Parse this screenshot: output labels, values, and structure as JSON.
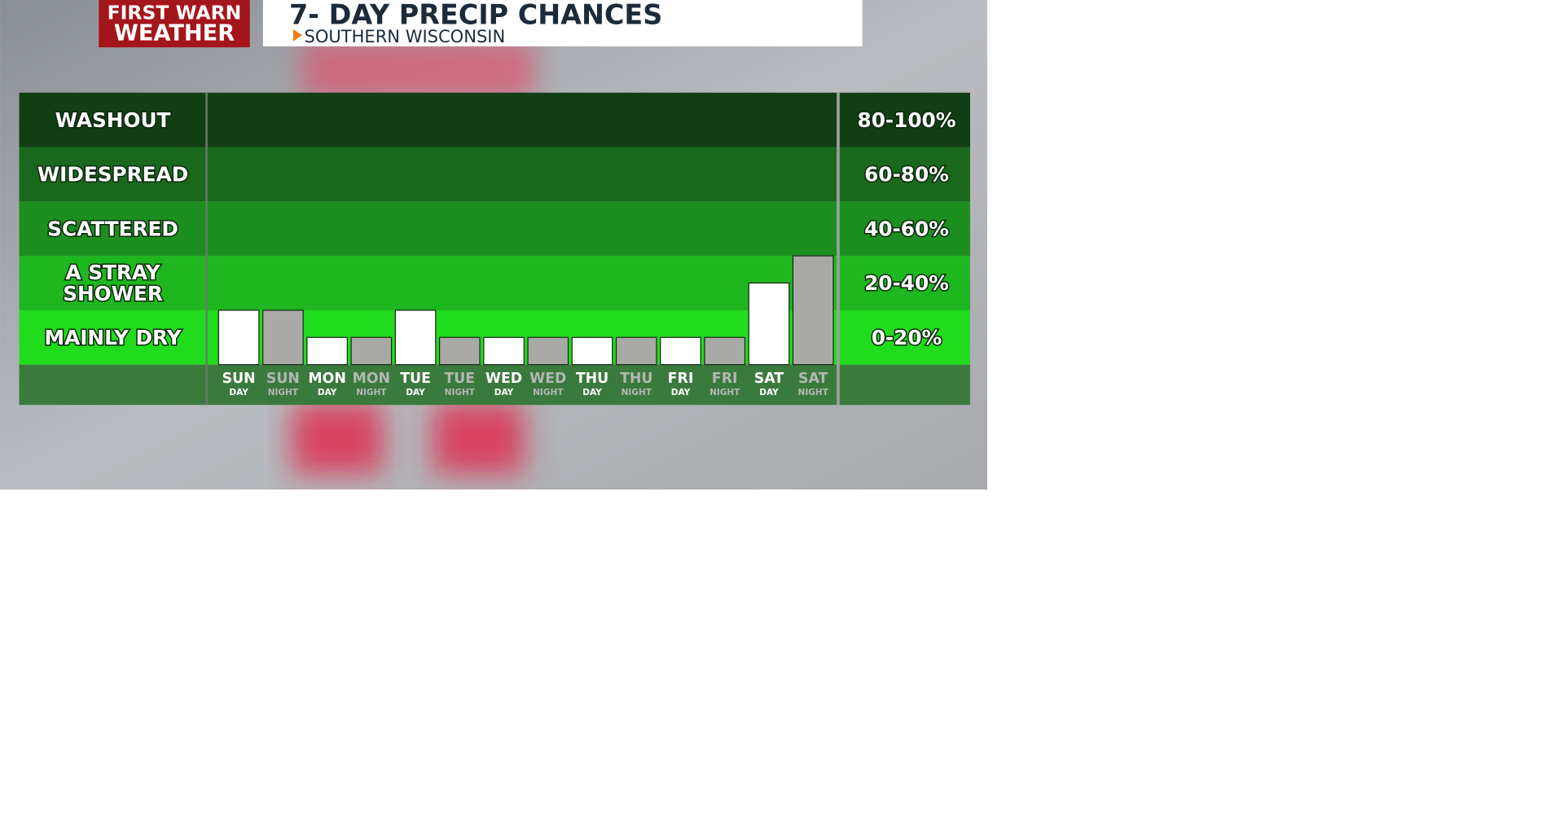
{
  "header": {
    "logo": [
      "FIRST WARN",
      "WEATHER"
    ],
    "title": "7- DAY PRECIP CHANCES",
    "subtitle": "SOUTHERN WISCONSIN"
  },
  "chart_data": {
    "type": "bar",
    "categories": [
      "SUN",
      "SUN",
      "MON",
      "MON",
      "TUE",
      "TUE",
      "WED",
      "WED",
      "THU",
      "THU",
      "FRI",
      "FRI",
      "SAT",
      "SAT"
    ],
    "periods": [
      "DAY",
      "NIGHT",
      "DAY",
      "NIGHT",
      "DAY",
      "NIGHT",
      "DAY",
      "NIGHT",
      "DAY",
      "NIGHT",
      "DAY",
      "NIGHT",
      "DAY",
      "NIGHT"
    ],
    "values": [
      20,
      20,
      10,
      10,
      20,
      10,
      10,
      10,
      10,
      10,
      10,
      10,
      30,
      40
    ],
    "colors": [
      "#ffffff",
      "#a9aaa7",
      "#ffffff",
      "#a9aaa7",
      "#ffffff",
      "#a9aaa7",
      "#ffffff",
      "#a9aaa7",
      "#ffffff",
      "#a9aaa7",
      "#ffffff",
      "#a9aaa7",
      "#ffffff",
      "#a9aaa7"
    ],
    "ylim": [
      0,
      100
    ],
    "bands": [
      {
        "label": [
          "MAINLY DRY"
        ],
        "range": "0-20%",
        "from": 0,
        "to": 20,
        "color": "#21dc1d"
      },
      {
        "label": [
          "A STRAY",
          "SHOWER"
        ],
        "range": "20-40%",
        "from": 20,
        "to": 40,
        "color": "#1eb71f"
      },
      {
        "label": [
          "SCATTERED"
        ],
        "range": "40-60%",
        "from": 40,
        "to": 60,
        "color": "#1c8e20"
      },
      {
        "label": [
          "WIDESPREAD"
        ],
        "range": "60-80%",
        "from": 60,
        "to": 80,
        "color": "#1a681d"
      },
      {
        "label": [
          "WASHOUT"
        ],
        "range": "80-100%",
        "from": 80,
        "to": 100,
        "color": "#123e14"
      }
    ]
  }
}
